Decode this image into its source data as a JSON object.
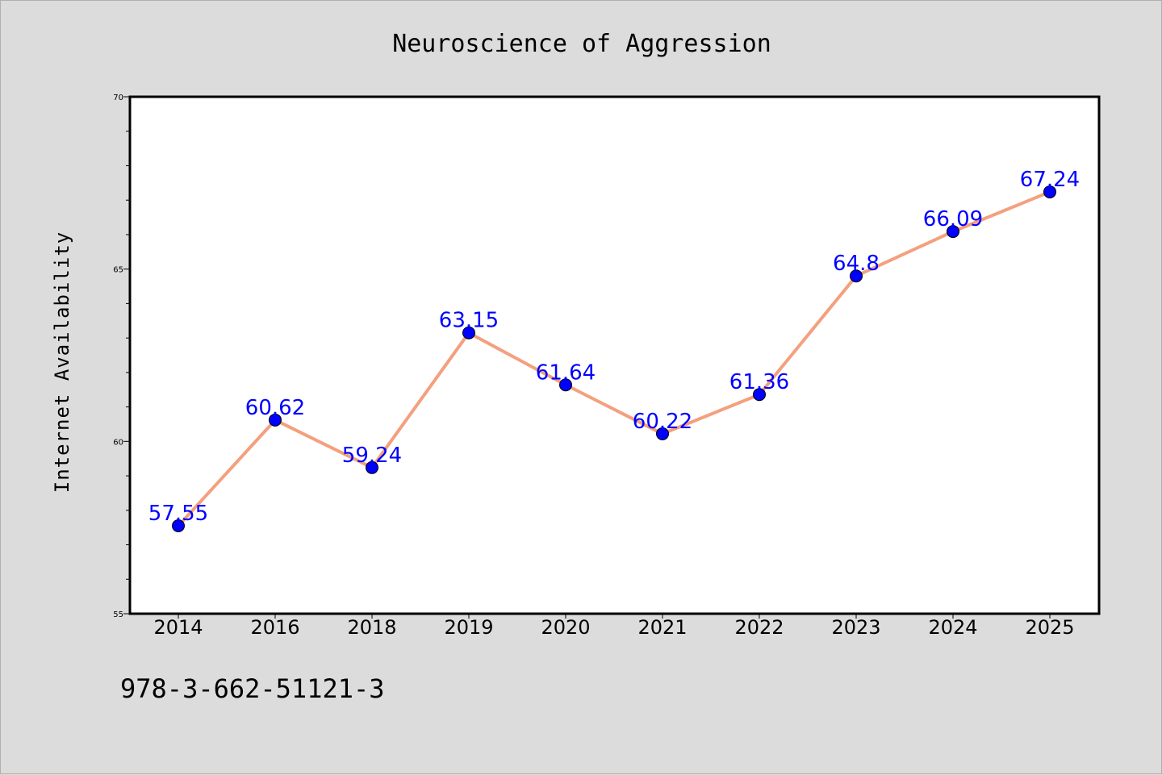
{
  "chart_data": {
    "type": "line",
    "title": "Neuroscience of Aggression",
    "xlabel": "",
    "ylabel": "Internet Availability",
    "categories": [
      "2014",
      "2016",
      "2018",
      "2019",
      "2020",
      "2021",
      "2022",
      "2023",
      "2024",
      "2025"
    ],
    "series": [
      {
        "values": [
          57.55,
          60.62,
          59.24,
          63.15,
          61.64,
          60.22,
          61.36,
          64.8,
          66.09,
          67.24
        ],
        "data_labels": [
          "57.55",
          "60.62",
          "59.24",
          "63.15",
          "61.64",
          "60.22",
          "61.36",
          "64.8",
          "66.09",
          "67.24"
        ],
        "line_color": "#f4a07e",
        "marker_color": "#0000ff"
      }
    ],
    "ylim": [
      55,
      70
    ],
    "yticks": [
      "55",
      "60",
      "65",
      "70"
    ],
    "grid": false,
    "legend": "none"
  },
  "footer": {
    "isbn": "978-3-662-51121-3"
  },
  "colors": {
    "background": "#dcdcdc",
    "plot_background": "#ffffff",
    "label_color": "#0000ff"
  }
}
